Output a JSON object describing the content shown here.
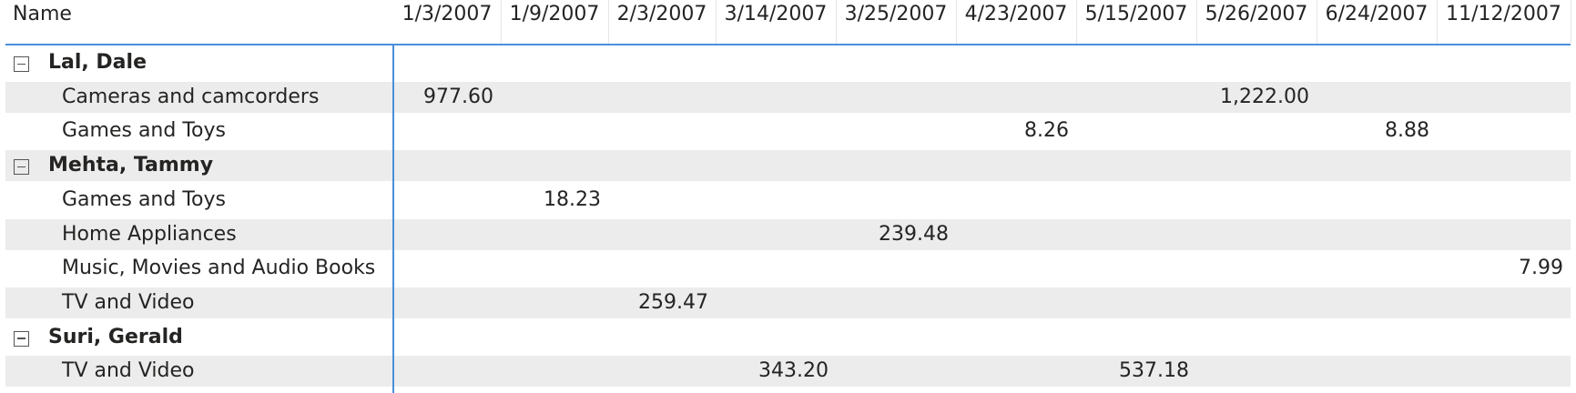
{
  "header": {
    "name_label": "Name",
    "dates": [
      "1/3/2007",
      "1/9/2007",
      "2/3/2007",
      "3/14/2007",
      "3/25/2007",
      "4/23/2007",
      "5/15/2007",
      "5/26/2007",
      "6/24/2007",
      "11/12/2007"
    ]
  },
  "groups": [
    {
      "name": "Lal, Dale",
      "rows": [
        {
          "label": "Cameras and camcorders",
          "values": [
            "977.60",
            "",
            "",
            "",
            "",
            "",
            "",
            "1,222.00",
            "",
            ""
          ]
        },
        {
          "label": "Games and Toys",
          "values": [
            "",
            "",
            "",
            "",
            "",
            "8.26",
            "",
            "",
            "8.88",
            ""
          ]
        }
      ]
    },
    {
      "name": "Mehta, Tammy",
      "rows": [
        {
          "label": "Games and Toys",
          "values": [
            "",
            "18.23",
            "",
            "",
            "",
            "",
            "",
            "",
            "",
            ""
          ]
        },
        {
          "label": "Home Appliances",
          "values": [
            "",
            "",
            "",
            "",
            "239.48",
            "",
            "",
            "",
            "",
            ""
          ]
        },
        {
          "label": "Music, Movies and Audio Books",
          "values": [
            "",
            "",
            "",
            "",
            "",
            "",
            "",
            "",
            "",
            "7.99"
          ]
        },
        {
          "label": "TV and Video",
          "values": [
            "",
            "",
            "259.47",
            "",
            "",
            "",
            "",
            "",
            "",
            ""
          ]
        }
      ]
    },
    {
      "name": "Suri, Gerald",
      "rows": [
        {
          "label": "TV and Video",
          "values": [
            "",
            "",
            "",
            "343.20",
            "",
            "",
            "537.18",
            "",
            "",
            ""
          ]
        }
      ]
    }
  ]
}
